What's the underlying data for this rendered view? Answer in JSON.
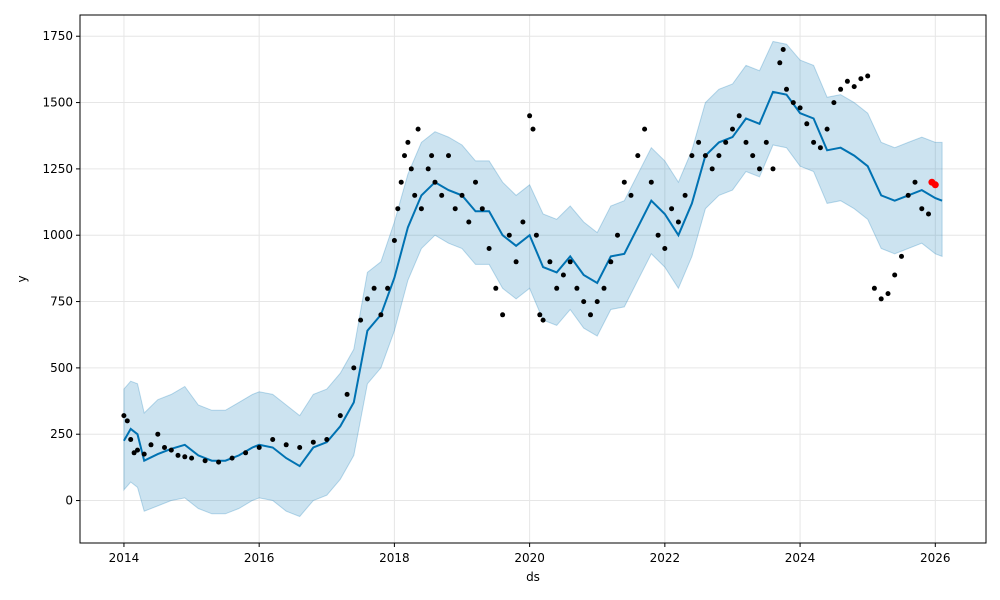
{
  "chart_data": {
    "type": "line",
    "xlabel": "ds",
    "ylabel": "y",
    "xlim": [
      2013.35,
      2026.75
    ],
    "ylim": [
      -160,
      1830
    ],
    "x_ticks": [
      2014,
      2016,
      2018,
      2020,
      2022,
      2024,
      2026
    ],
    "x_tick_labels": [
      "2014",
      "2016",
      "2018",
      "2020",
      "2022",
      "2024",
      "2026"
    ],
    "y_ticks": [
      0,
      250,
      500,
      750,
      1000,
      1250,
      1500,
      1750
    ],
    "y_tick_labels": [
      "0",
      "250",
      "500",
      "750",
      "1000",
      "1250",
      "1500",
      "1750"
    ],
    "grid": true,
    "colors": {
      "forecast_line": "#0072B2",
      "uncertainty_band": "#0072B2",
      "observed_points": "#000000",
      "highlight_points": "#ff0000",
      "grid": "#e6e6e6"
    },
    "series": [
      {
        "role": "forecast",
        "x": [
          2014.0,
          2014.1,
          2014.2,
          2014.3,
          2014.5,
          2014.7,
          2014.9,
          2015.1,
          2015.3,
          2015.5,
          2015.7,
          2015.9,
          2016.0,
          2016.2,
          2016.4,
          2016.6,
          2016.8,
          2017.0,
          2017.2,
          2017.4,
          2017.6,
          2017.8,
          2018.0,
          2018.2,
          2018.4,
          2018.6,
          2018.8,
          2019.0,
          2019.2,
          2019.4,
          2019.6,
          2019.8,
          2020.0,
          2020.2,
          2020.4,
          2020.6,
          2020.8,
          2021.0,
          2021.2,
          2021.4,
          2021.6,
          2021.8,
          2022.0,
          2022.2,
          2022.4,
          2022.6,
          2022.8,
          2023.0,
          2023.2,
          2023.4,
          2023.6,
          2023.8,
          2024.0,
          2024.2,
          2024.4,
          2024.6,
          2024.8,
          2025.0,
          2025.2,
          2025.4,
          2025.6,
          2025.8,
          2026.0,
          2026.1
        ],
        "values": [
          225,
          270,
          250,
          150,
          175,
          195,
          210,
          170,
          150,
          150,
          170,
          200,
          210,
          200,
          160,
          130,
          200,
          220,
          280,
          370,
          640,
          700,
          840,
          1030,
          1150,
          1200,
          1170,
          1150,
          1090,
          1090,
          1000,
          960,
          1000,
          880,
          860,
          920,
          850,
          820,
          920,
          930,
          1030,
          1130,
          1080,
          1000,
          1120,
          1300,
          1350,
          1370,
          1440,
          1420,
          1540,
          1530,
          1460,
          1440,
          1320,
          1330,
          1300,
          1260,
          1150,
          1130,
          1150,
          1170,
          1140,
          1130
        ]
      },
      {
        "role": "uncertainty_upper",
        "x": [
          2014.0,
          2014.1,
          2014.2,
          2014.3,
          2014.5,
          2014.7,
          2014.9,
          2015.1,
          2015.3,
          2015.5,
          2015.7,
          2015.9,
          2016.0,
          2016.2,
          2016.4,
          2016.6,
          2016.8,
          2017.0,
          2017.2,
          2017.4,
          2017.6,
          2017.8,
          2018.0,
          2018.2,
          2018.4,
          2018.6,
          2018.8,
          2019.0,
          2019.2,
          2019.4,
          2019.6,
          2019.8,
          2020.0,
          2020.2,
          2020.4,
          2020.6,
          2020.8,
          2021.0,
          2021.2,
          2021.4,
          2021.6,
          2021.8,
          2022.0,
          2022.2,
          2022.4,
          2022.6,
          2022.8,
          2023.0,
          2023.2,
          2023.4,
          2023.6,
          2023.8,
          2024.0,
          2024.2,
          2024.4,
          2024.6,
          2024.8,
          2025.0,
          2025.2,
          2025.4,
          2025.6,
          2025.8,
          2026.0,
          2026.1
        ],
        "values": [
          420,
          450,
          440,
          330,
          380,
          400,
          430,
          360,
          340,
          340,
          370,
          400,
          410,
          400,
          360,
          320,
          400,
          420,
          480,
          570,
          860,
          900,
          1050,
          1230,
          1350,
          1390,
          1370,
          1340,
          1280,
          1280,
          1200,
          1150,
          1190,
          1080,
          1060,
          1110,
          1050,
          1010,
          1110,
          1130,
          1230,
          1330,
          1280,
          1200,
          1320,
          1500,
          1550,
          1570,
          1640,
          1620,
          1730,
          1720,
          1660,
          1640,
          1520,
          1530,
          1500,
          1460,
          1350,
          1330,
          1350,
          1370,
          1350,
          1350
        ]
      },
      {
        "role": "uncertainty_lower",
        "x": [
          2014.0,
          2014.1,
          2014.2,
          2014.3,
          2014.5,
          2014.7,
          2014.9,
          2015.1,
          2015.3,
          2015.5,
          2015.7,
          2015.9,
          2016.0,
          2016.2,
          2016.4,
          2016.6,
          2016.8,
          2017.0,
          2017.2,
          2017.4,
          2017.6,
          2017.8,
          2018.0,
          2018.2,
          2018.4,
          2018.6,
          2018.8,
          2019.0,
          2019.2,
          2019.4,
          2019.6,
          2019.8,
          2020.0,
          2020.2,
          2020.4,
          2020.6,
          2020.8,
          2021.0,
          2021.2,
          2021.4,
          2021.6,
          2021.8,
          2022.0,
          2022.2,
          2022.4,
          2022.6,
          2022.8,
          2023.0,
          2023.2,
          2023.4,
          2023.6,
          2023.8,
          2024.0,
          2024.2,
          2024.4,
          2024.6,
          2024.8,
          2025.0,
          2025.2,
          2025.4,
          2025.6,
          2025.8,
          2026.0,
          2026.1
        ],
        "values": [
          40,
          70,
          50,
          -40,
          -20,
          0,
          10,
          -30,
          -50,
          -50,
          -30,
          0,
          10,
          0,
          -40,
          -60,
          0,
          20,
          80,
          170,
          440,
          500,
          640,
          830,
          950,
          1000,
          970,
          950,
          890,
          890,
          800,
          760,
          800,
          680,
          660,
          720,
          650,
          620,
          720,
          730,
          830,
          930,
          880,
          800,
          920,
          1100,
          1150,
          1170,
          1240,
          1220,
          1340,
          1330,
          1260,
          1240,
          1120,
          1130,
          1100,
          1060,
          950,
          930,
          950,
          970,
          930,
          920
        ]
      },
      {
        "role": "observed",
        "x": [
          2014.0,
          2014.05,
          2014.1,
          2014.15,
          2014.2,
          2014.3,
          2014.4,
          2014.5,
          2014.6,
          2014.7,
          2014.8,
          2014.9,
          2015.0,
          2015.2,
          2015.4,
          2015.6,
          2015.8,
          2016.0,
          2016.2,
          2016.4,
          2016.6,
          2016.8,
          2017.0,
          2017.2,
          2017.3,
          2017.4,
          2017.5,
          2017.6,
          2017.7,
          2017.8,
          2017.9,
          2018.0,
          2018.05,
          2018.1,
          2018.15,
          2018.2,
          2018.25,
          2018.3,
          2018.35,
          2018.4,
          2018.5,
          2018.55,
          2018.6,
          2018.7,
          2018.8,
          2018.9,
          2019.0,
          2019.1,
          2019.2,
          2019.3,
          2019.4,
          2019.5,
          2019.6,
          2019.7,
          2019.8,
          2019.9,
          2020.0,
          2020.05,
          2020.1,
          2020.15,
          2020.2,
          2020.3,
          2020.4,
          2020.5,
          2020.6,
          2020.7,
          2020.8,
          2020.9,
          2021.0,
          2021.1,
          2021.2,
          2021.3,
          2021.4,
          2021.5,
          2021.6,
          2021.7,
          2021.8,
          2021.9,
          2022.0,
          2022.1,
          2022.2,
          2022.3,
          2022.4,
          2022.5,
          2022.6,
          2022.7,
          2022.8,
          2022.9,
          2023.0,
          2023.1,
          2023.2,
          2023.3,
          2023.4,
          2023.5,
          2023.6,
          2023.7,
          2023.75,
          2023.8,
          2023.9,
          2024.0,
          2024.1,
          2024.2,
          2024.3,
          2024.4,
          2024.5,
          2024.6,
          2024.7,
          2024.8,
          2024.9,
          2025.0,
          2025.1,
          2025.2,
          2025.3,
          2025.4,
          2025.5,
          2025.6,
          2025.7,
          2025.8,
          2025.9
        ],
        "values": [
          320,
          300,
          230,
          180,
          190,
          175,
          210,
          250,
          200,
          190,
          170,
          165,
          160,
          150,
          145,
          160,
          180,
          200,
          230,
          210,
          200,
          220,
          230,
          320,
          400,
          500,
          680,
          760,
          800,
          700,
          800,
          980,
          1100,
          1200,
          1300,
          1350,
          1250,
          1150,
          1400,
          1100,
          1250,
          1300,
          1200,
          1150,
          1300,
          1100,
          1150,
          1050,
          1200,
          1100,
          950,
          800,
          700,
          1000,
          900,
          1050,
          1450,
          1400,
          1000,
          700,
          680,
          900,
          800,
          850,
          900,
          800,
          750,
          700,
          750,
          800,
          900,
          1000,
          1200,
          1150,
          1300,
          1400,
          1200,
          1000,
          950,
          1100,
          1050,
          1150,
          1300,
          1350,
          1300,
          1250,
          1300,
          1350,
          1400,
          1450,
          1350,
          1300,
          1250,
          1350,
          1250,
          1650,
          1700,
          1550,
          1500,
          1480,
          1420,
          1350,
          1330,
          1400,
          1500,
          1550,
          1580,
          1560,
          1590,
          1600,
          800,
          760,
          780,
          850,
          920,
          1150,
          1200,
          1100,
          1080
        ]
      },
      {
        "role": "observed_recent",
        "x": [
          2025.95,
          2026.0
        ],
        "values": [
          1200,
          1190
        ]
      }
    ]
  }
}
